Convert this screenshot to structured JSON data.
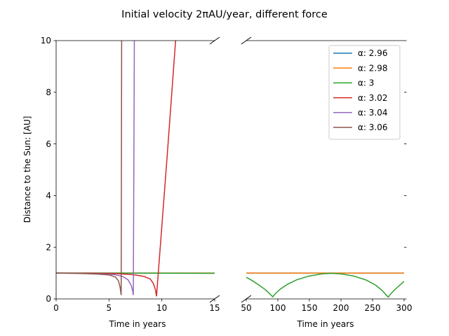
{
  "chart_data": {
    "type": "line",
    "title": "Initial velocity 2πAU/year, different force",
    "ylabel": "Distance to the Sun: [AU]",
    "ylim": [
      0,
      10
    ],
    "yticks": [
      "0",
      "2",
      "4",
      "6",
      "8",
      "10"
    ],
    "broken_x_axis": true,
    "panels": [
      {
        "xlabel": "Time in years",
        "xlim": [
          0,
          15
        ],
        "xticks": [
          "0",
          "5",
          "10",
          "15"
        ],
        "tick_values": [
          0,
          5,
          10,
          15
        ]
      },
      {
        "xlabel": "Time in years",
        "xlim": [
          50,
          300
        ],
        "xticks": [
          "50",
          "100",
          "150",
          "200",
          "250",
          "300"
        ],
        "tick_values": [
          50,
          100,
          150,
          200,
          250,
          300
        ]
      }
    ],
    "legend": {
      "placement": "top-right of right panel"
    },
    "series": [
      {
        "name": "α: 2.96",
        "color": "#1f77b4",
        "panel1": [
          [
            0,
            1
          ],
          [
            15,
            1
          ]
        ],
        "panel2": [
          [
            50,
            1
          ],
          [
            300,
            1
          ]
        ]
      },
      {
        "name": "α: 2.98",
        "color": "#ff7f0e",
        "panel1": [
          [
            0,
            1
          ],
          [
            15,
            1
          ]
        ],
        "panel2": [
          [
            50,
            1
          ],
          [
            300,
            1
          ]
        ]
      },
      {
        "name": "α: 3",
        "color": "#2ca02c",
        "panel1": [
          [
            0,
            1
          ],
          [
            15,
            0.99
          ]
        ],
        "panel2": [
          [
            50,
            0.84
          ],
          [
            60,
            0.7
          ],
          [
            70,
            0.54
          ],
          [
            80,
            0.36
          ],
          [
            88,
            0.18
          ],
          [
            92,
            0.08
          ],
          [
            96,
            0.2
          ],
          [
            104,
            0.38
          ],
          [
            115,
            0.56
          ],
          [
            130,
            0.74
          ],
          [
            150,
            0.89
          ],
          [
            170,
            0.97
          ],
          [
            185,
            0.99
          ],
          [
            200,
            0.97
          ],
          [
            220,
            0.89
          ],
          [
            240,
            0.73
          ],
          [
            255,
            0.53
          ],
          [
            265,
            0.33
          ],
          [
            272,
            0.14
          ],
          [
            275,
            0.07
          ],
          [
            279,
            0.2
          ],
          [
            288,
            0.42
          ],
          [
            300,
            0.68
          ]
        ]
      },
      {
        "name": "α: 3.02",
        "color": "#d62728",
        "panel1": [
          [
            0,
            1
          ],
          [
            2,
            0.998
          ],
          [
            4,
            0.99
          ],
          [
            5.5,
            0.98
          ],
          [
            6.5,
            0.96
          ],
          [
            7.5,
            0.93
          ],
          [
            8.3,
            0.87
          ],
          [
            8.9,
            0.77
          ],
          [
            9.2,
            0.6
          ],
          [
            9.4,
            0.35
          ],
          [
            9.5,
            0.1
          ],
          [
            10.5,
            5.5
          ],
          [
            11.3,
            10
          ]
        ],
        "panel2": []
      },
      {
        "name": "α: 3.04",
        "color": "#9467bd",
        "panel1": [
          [
            0,
            1
          ],
          [
            2,
            0.99
          ],
          [
            4,
            0.97
          ],
          [
            5.5,
            0.94
          ],
          [
            6.3,
            0.87
          ],
          [
            6.8,
            0.74
          ],
          [
            7.1,
            0.52
          ],
          [
            7.25,
            0.3
          ],
          [
            7.3,
            0.15
          ],
          [
            7.35,
            4.5
          ],
          [
            7.4,
            10
          ]
        ],
        "panel2": []
      },
      {
        "name": "α: 3.06",
        "color": "#8c564b",
        "panel1": [
          [
            0,
            1
          ],
          [
            2,
            0.99
          ],
          [
            4,
            0.96
          ],
          [
            5,
            0.93
          ],
          [
            5.6,
            0.85
          ],
          [
            5.9,
            0.7
          ],
          [
            6.05,
            0.45
          ],
          [
            6.15,
            0.15
          ],
          [
            6.17,
            4
          ],
          [
            6.2,
            10
          ]
        ],
        "panel2": []
      }
    ]
  }
}
